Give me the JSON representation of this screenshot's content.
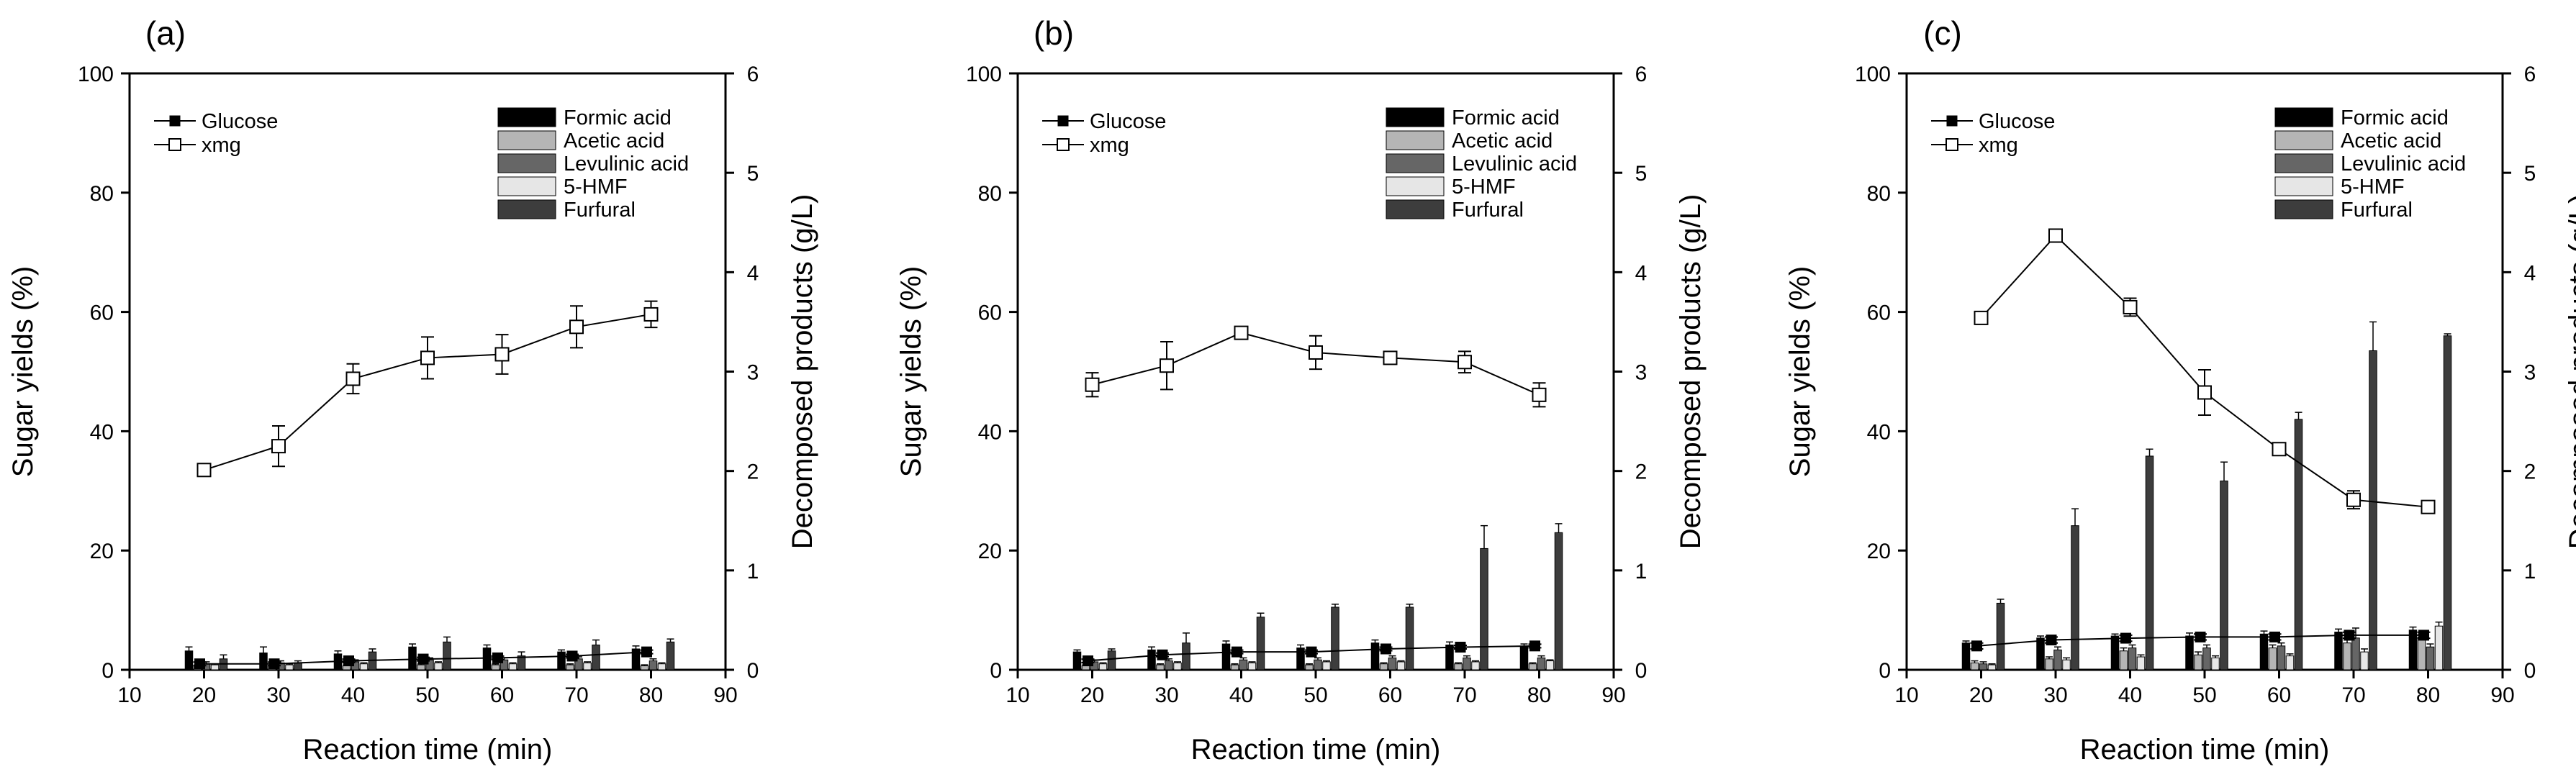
{
  "chart_data": [
    {
      "type": "bar",
      "panel_label": "(a)",
      "xlabel": "Reaction time (min)",
      "ylabel": "Sugar yields (%)",
      "y2label": "Decomposed products (g/L)",
      "xlim": [
        10,
        90
      ],
      "ylim": [
        0,
        100
      ],
      "y2lim": [
        0,
        6
      ],
      "xticks": [
        "10",
        "20",
        "30",
        "40",
        "50",
        "60",
        "70",
        "80",
        "90"
      ],
      "yticks": [
        "0",
        "20",
        "40",
        "60",
        "80",
        "100"
      ],
      "y2ticks": [
        "0",
        "1",
        "2",
        "3",
        "4",
        "5",
        "6"
      ],
      "x": [
        20,
        30,
        40,
        50,
        60,
        70,
        80
      ],
      "line_series": [
        {
          "name": "Glucose",
          "marker": "filled-square",
          "values": [
            1.0,
            1.0,
            1.5,
            1.8,
            2.0,
            2.3,
            3.0
          ],
          "errors": [
            0.3,
            0.3,
            0.3,
            0.3,
            0.3,
            0.3,
            0.3
          ]
        },
        {
          "name": "xmg",
          "marker": "open-square",
          "values": [
            33.5,
            37.5,
            48.8,
            52.3,
            52.9,
            57.5,
            59.6
          ],
          "errors": [
            0.8,
            3.4,
            2.5,
            3.5,
            3.3,
            3.5,
            2.2
          ]
        }
      ],
      "bar_series": [
        {
          "name": "Formic acid",
          "color": "#000000",
          "values": [
            0.19,
            0.17,
            0.16,
            0.23,
            0.22,
            0.18,
            0.21
          ],
          "errors": [
            0.04,
            0.06,
            0.03,
            0.03,
            0.03,
            0.02,
            0.03
          ]
        },
        {
          "name": "Acetic acid",
          "color": "#b5b5b5",
          "values": [
            0.04,
            0.04,
            0.04,
            0.05,
            0.05,
            0.05,
            0.04
          ],
          "errors": [
            0.01,
            0.01,
            0.01,
            0.01,
            0.01,
            0.01,
            0.01
          ]
        },
        {
          "name": "Levulinic acid",
          "color": "#666666",
          "values": [
            0.06,
            0.07,
            0.08,
            0.1,
            0.1,
            0.11,
            0.09
          ],
          "errors": [
            0.02,
            0.02,
            0.02,
            0.02,
            0.02,
            0.02,
            0.02
          ]
        },
        {
          "name": "5-HMF",
          "color": "#e6e6e6",
          "values": [
            0.05,
            0.05,
            0.06,
            0.07,
            0.06,
            0.07,
            0.06
          ],
          "errors": [
            0.01,
            0.01,
            0.01,
            0.01,
            0.01,
            0.01,
            0.01
          ]
        },
        {
          "name": "Furfural",
          "color": "#3d3d3d",
          "values": [
            0.11,
            0.07,
            0.18,
            0.28,
            0.14,
            0.25,
            0.28
          ],
          "errors": [
            0.04,
            0.02,
            0.03,
            0.05,
            0.04,
            0.05,
            0.03
          ]
        }
      ],
      "legend_position": "top"
    },
    {
      "type": "bar",
      "panel_label": "(b)",
      "xlabel": "Reaction time (min)",
      "ylabel": "Sugar yields (%)",
      "y2label": "Decomposed products (g/L)",
      "xlim": [
        10,
        90
      ],
      "ylim": [
        0,
        100
      ],
      "y2lim": [
        0,
        6
      ],
      "xticks": [
        "10",
        "20",
        "30",
        "40",
        "50",
        "60",
        "70",
        "80",
        "90"
      ],
      "yticks": [
        "0",
        "20",
        "40",
        "60",
        "80",
        "100"
      ],
      "y2ticks": [
        "0",
        "1",
        "2",
        "3",
        "4",
        "5",
        "6"
      ],
      "x": [
        20,
        30,
        40,
        50,
        60,
        70,
        80
      ],
      "line_series": [
        {
          "name": "Glucose",
          "marker": "filled-square",
          "values": [
            1.5,
            2.5,
            3.0,
            3.0,
            3.5,
            3.8,
            4.0
          ],
          "errors": [
            0.3,
            0.3,
            0.3,
            0.3,
            0.3,
            0.3,
            0.3
          ]
        },
        {
          "name": "xmg",
          "marker": "open-square",
          "values": [
            47.8,
            51.0,
            56.5,
            53.2,
            52.3,
            51.6,
            46.1
          ],
          "errors": [
            2.0,
            4.0,
            0.5,
            2.8,
            0.9,
            1.8,
            2.0
          ]
        }
      ],
      "bar_series": [
        {
          "name": "Formic acid",
          "color": "#000000",
          "values": [
            0.18,
            0.2,
            0.26,
            0.22,
            0.27,
            0.25,
            0.23
          ],
          "errors": [
            0.02,
            0.03,
            0.03,
            0.03,
            0.03,
            0.03,
            0.03
          ]
        },
        {
          "name": "Acetic acid",
          "color": "#b5b5b5",
          "values": [
            0.04,
            0.05,
            0.05,
            0.05,
            0.06,
            0.06,
            0.06
          ],
          "errors": [
            0.01,
            0.01,
            0.01,
            0.01,
            0.01,
            0.01,
            0.01
          ]
        },
        {
          "name": "Levulinic acid",
          "color": "#666666",
          "values": [
            0.08,
            0.09,
            0.1,
            0.1,
            0.12,
            0.12,
            0.12
          ],
          "errors": [
            0.02,
            0.02,
            0.02,
            0.02,
            0.02,
            0.02,
            0.02
          ]
        },
        {
          "name": "5-HMF",
          "color": "#e6e6e6",
          "values": [
            0.06,
            0.07,
            0.07,
            0.08,
            0.08,
            0.08,
            0.09
          ],
          "errors": [
            0.01,
            0.01,
            0.01,
            0.01,
            0.01,
            0.01,
            0.01
          ]
        },
        {
          "name": "Furfural",
          "color": "#3d3d3d",
          "values": [
            0.19,
            0.27,
            0.53,
            0.63,
            0.63,
            1.22,
            1.38
          ],
          "errors": [
            0.02,
            0.1,
            0.04,
            0.03,
            0.03,
            0.23,
            0.09
          ]
        }
      ],
      "legend_position": "top"
    },
    {
      "type": "bar",
      "panel_label": "(c)",
      "xlabel": "Reaction time (min)",
      "ylabel": "Sugar yields (%)",
      "y2label": "Decomposed products (g/L)",
      "xlim": [
        10,
        90
      ],
      "ylim": [
        0,
        100
      ],
      "y2lim": [
        0,
        6
      ],
      "xticks": [
        "10",
        "20",
        "30",
        "40",
        "50",
        "60",
        "70",
        "80",
        "90"
      ],
      "yticks": [
        "0",
        "20",
        "40",
        "60",
        "80",
        "100"
      ],
      "y2ticks": [
        "0",
        "1",
        "2",
        "3",
        "4",
        "5",
        "6"
      ],
      "x": [
        20,
        30,
        40,
        50,
        60,
        70,
        80
      ],
      "line_series": [
        {
          "name": "Glucose",
          "marker": "filled-square",
          "values": [
            4.0,
            5.0,
            5.3,
            5.5,
            5.5,
            5.8,
            5.8
          ],
          "errors": [
            0.5,
            0.5,
            0.5,
            0.5,
            0.5,
            0.5,
            0.5
          ]
        },
        {
          "name": "xmg",
          "marker": "open-square",
          "values": [
            59.0,
            72.8,
            60.8,
            46.5,
            37.0,
            28.5,
            27.3
          ],
          "errors": [
            1.0,
            0.8,
            1.5,
            3.8,
            0.5,
            1.5,
            0.6
          ]
        }
      ],
      "bar_series": [
        {
          "name": "Formic acid",
          "color": "#000000",
          "values": [
            0.27,
            0.32,
            0.34,
            0.34,
            0.36,
            0.38,
            0.4
          ],
          "errors": [
            0.02,
            0.02,
            0.02,
            0.03,
            0.03,
            0.03,
            0.03
          ]
        },
        {
          "name": "Acetic acid",
          "color": "#b5b5b5",
          "values": [
            0.07,
            0.11,
            0.19,
            0.15,
            0.22,
            0.27,
            0.33
          ],
          "errors": [
            0.02,
            0.02,
            0.03,
            0.03,
            0.03,
            0.03,
            0.03
          ]
        },
        {
          "name": "Levulinic acid",
          "color": "#666666",
          "values": [
            0.06,
            0.2,
            0.22,
            0.22,
            0.24,
            0.32,
            0.23
          ],
          "errors": [
            0.02,
            0.03,
            0.03,
            0.03,
            0.03,
            0.1,
            0.03
          ]
        },
        {
          "name": "5-HMF",
          "color": "#e6e6e6",
          "values": [
            0.05,
            0.1,
            0.13,
            0.12,
            0.14,
            0.18,
            0.44
          ],
          "errors": [
            0.01,
            0.02,
            0.02,
            0.02,
            0.02,
            0.03,
            0.04
          ]
        },
        {
          "name": "Furfural",
          "color": "#3d3d3d",
          "values": [
            0.67,
            1.45,
            2.15,
            1.9,
            2.52,
            3.21,
            3.36
          ],
          "errors": [
            0.04,
            0.17,
            0.07,
            0.19,
            0.07,
            0.29,
            0.02
          ]
        }
      ],
      "legend_position": "top"
    }
  ]
}
